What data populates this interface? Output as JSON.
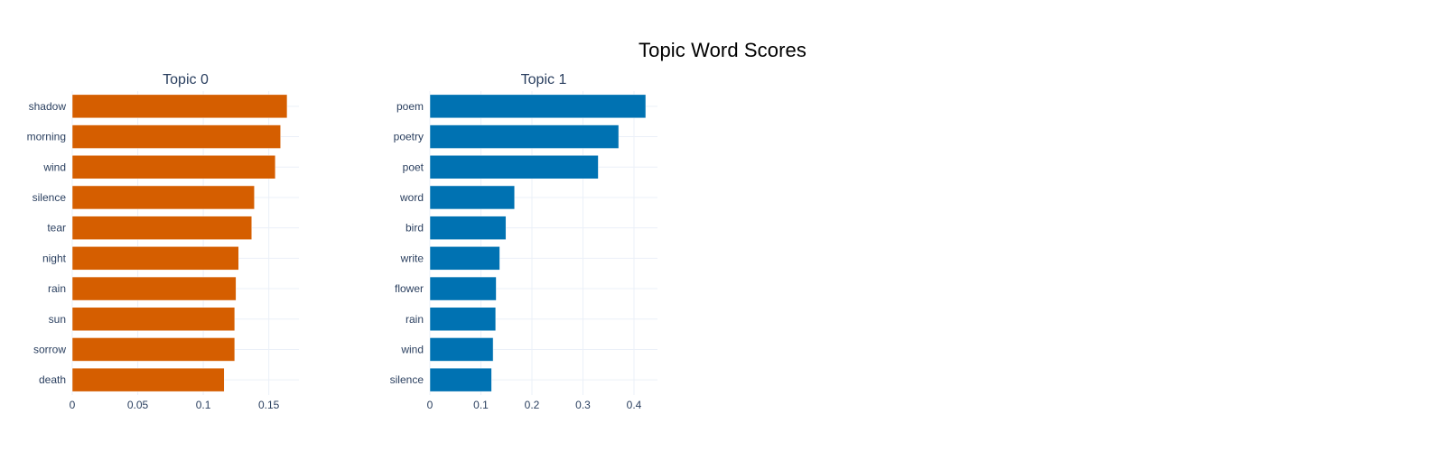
{
  "title": "Topic Word Scores",
  "colors": {
    "topic0": "#D55E00",
    "topic1": "#0072B2",
    "grid": "#ebf0f8",
    "text": "#2a3f5f"
  },
  "chart_data": [
    {
      "type": "bar",
      "orientation": "horizontal",
      "title": "Topic 0",
      "categories": [
        "shadow",
        "morning",
        "wind",
        "silence",
        "tear",
        "night",
        "rain",
        "sun",
        "sorrow",
        "death"
      ],
      "values": [
        0.164,
        0.159,
        0.155,
        0.139,
        0.137,
        0.127,
        0.125,
        0.124,
        0.124,
        0.116
      ],
      "xlim": [
        0,
        0.173
      ],
      "xticks": [
        0,
        0.05,
        0.1,
        0.15
      ],
      "xtick_labels": [
        "0",
        "0.05",
        "0.1",
        "0.15"
      ],
      "xlabel": "",
      "ylabel": "",
      "grid": true,
      "color": "#D55E00"
    },
    {
      "type": "bar",
      "orientation": "horizontal",
      "title": "Topic 1",
      "categories": [
        "poem",
        "poetry",
        "poet",
        "word",
        "bird",
        "write",
        "flower",
        "rain",
        "wind",
        "silence"
      ],
      "values": [
        0.423,
        0.37,
        0.33,
        0.166,
        0.149,
        0.137,
        0.13,
        0.129,
        0.124,
        0.121
      ],
      "xlim": [
        0,
        0.446
      ],
      "xticks": [
        0,
        0.1,
        0.2,
        0.3,
        0.4
      ],
      "xtick_labels": [
        "0",
        "0.1",
        "0.2",
        "0.3",
        "0.4"
      ],
      "xlabel": "",
      "ylabel": "",
      "grid": true,
      "color": "#0072B2"
    }
  ]
}
